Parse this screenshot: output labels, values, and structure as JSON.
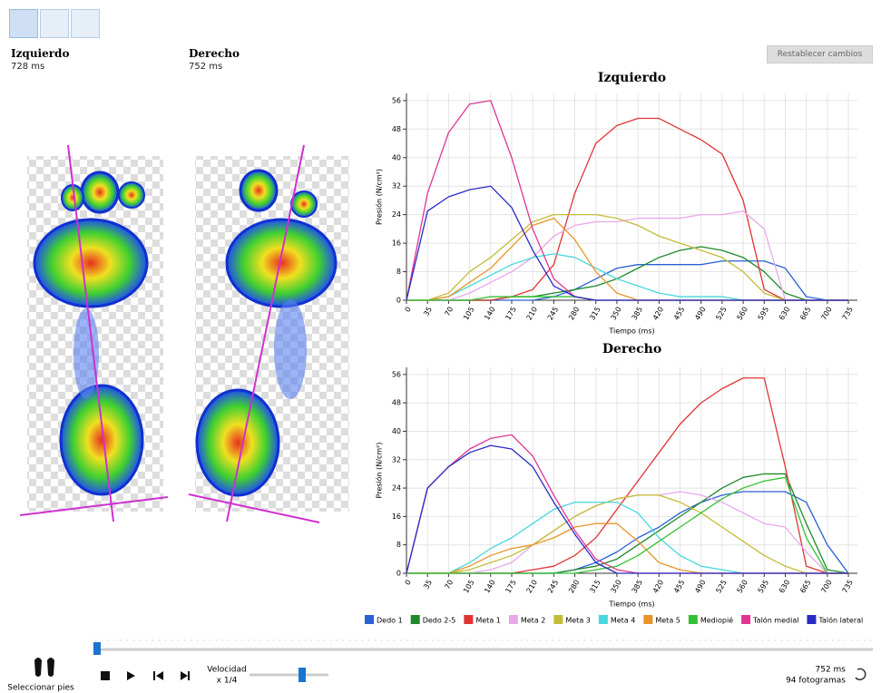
{
  "header": {
    "left_title": "Izquierdo",
    "left_time": "728 ms",
    "right_title": "Derecho",
    "right_time": "752 ms",
    "reset_button": "Restablecer cambios"
  },
  "controls": {
    "select_feet": "Seleccionar pies",
    "speed_label": "Velocidad",
    "speed_value": "x 1/4",
    "time": "752 ms",
    "frames": "94 fotogramas"
  },
  "chart_data": [
    {
      "type": "line",
      "title": "Izquierdo",
      "x_label": "Tiempo (ms)",
      "y_label": "Presión (N/cm²)",
      "grid": true,
      "x": [
        0,
        35,
        70,
        105,
        140,
        175,
        210,
        245,
        280,
        315,
        350,
        385,
        420,
        455,
        490,
        525,
        560,
        595,
        630,
        665,
        700,
        735
      ],
      "xlim": [
        0,
        750
      ],
      "xticks": [
        0,
        35,
        70,
        105,
        140,
        175,
        210,
        245,
        280,
        315,
        350,
        385,
        420,
        455,
        490,
        525,
        560,
        595,
        630,
        665,
        700,
        735
      ],
      "ylim": [
        0,
        58
      ],
      "yticks": [
        0,
        8,
        16,
        24,
        32,
        40,
        48,
        56
      ],
      "series": [
        {
          "name": "Dedo 1",
          "color": "#2a62d4",
          "values": [
            0,
            0,
            0,
            0,
            0,
            0,
            0,
            1,
            3,
            6,
            9,
            10,
            10,
            10,
            10,
            11,
            11,
            11,
            9,
            1,
            0,
            0
          ]
        },
        {
          "name": "Dedo 2-5",
          "color": "#1f8a2a",
          "values": [
            0,
            0,
            0,
            0,
            0,
            1,
            1,
            2,
            3,
            4,
            6,
            9,
            12,
            14,
            15,
            14,
            12,
            8,
            2,
            0,
            0,
            0
          ]
        },
        {
          "name": "Meta 1",
          "color": "#e03434",
          "values": [
            0,
            0,
            0,
            0,
            0,
            1,
            3,
            10,
            30,
            44,
            49,
            51,
            51,
            48,
            45,
            41,
            28,
            3,
            0,
            0,
            0,
            0
          ]
        },
        {
          "name": "Meta 2",
          "color": "#e8a8e8",
          "values": [
            0,
            0,
            0,
            2,
            5,
            8,
            12,
            18,
            21,
            22,
            22,
            23,
            23,
            23,
            24,
            24,
            25,
            20,
            0,
            0,
            0,
            0
          ]
        },
        {
          "name": "Meta 3",
          "color": "#c4bc38",
          "values": [
            0,
            0,
            2,
            8,
            12,
            17,
            22,
            24,
            24,
            24,
            23,
            21,
            18,
            16,
            14,
            12,
            8,
            2,
            0,
            0,
            0,
            0
          ]
        },
        {
          "name": "Meta 4",
          "color": "#46d8dc",
          "values": [
            0,
            0,
            1,
            4,
            7,
            10,
            12,
            13,
            12,
            9,
            6,
            4,
            2,
            1,
            1,
            1,
            0,
            0,
            0,
            0,
            0,
            0
          ]
        },
        {
          "name": "Meta 5",
          "color": "#ea9428",
          "values": [
            0,
            0,
            1,
            5,
            9,
            15,
            21,
            23,
            17,
            8,
            2,
            0,
            0,
            0,
            0,
            0,
            0,
            0,
            0,
            0,
            0,
            0
          ]
        },
        {
          "name": "Mediopié",
          "color": "#34c234",
          "values": [
            0,
            0,
            0,
            0,
            1,
            1,
            1,
            1,
            1,
            0,
            0,
            0,
            0,
            0,
            0,
            0,
            0,
            0,
            0,
            0,
            0,
            0
          ]
        },
        {
          "name": "Talón medial",
          "color": "#e03592",
          "values": [
            0,
            30,
            47,
            55,
            56,
            40,
            20,
            6,
            1,
            0,
            0,
            0,
            0,
            0,
            0,
            0,
            0,
            0,
            0,
            0,
            0,
            0
          ]
        },
        {
          "name": "Talón lateral",
          "color": "#2a2ac4",
          "values": [
            0,
            25,
            29,
            31,
            32,
            26,
            14,
            4,
            1,
            0,
            0,
            0,
            0,
            0,
            0,
            0,
            0,
            0,
            0,
            0,
            0,
            0
          ]
        }
      ]
    },
    {
      "type": "line",
      "title": "Derecho",
      "x_label": "Tiempo (ms)",
      "y_label": "Presión (N/cm²)",
      "grid": true,
      "x": [
        0,
        35,
        70,
        105,
        140,
        175,
        210,
        245,
        280,
        315,
        350,
        385,
        420,
        455,
        490,
        525,
        560,
        595,
        630,
        665,
        700,
        735
      ],
      "xlim": [
        0,
        750
      ],
      "xticks": [
        0,
        35,
        70,
        105,
        140,
        175,
        210,
        245,
        280,
        315,
        350,
        385,
        420,
        455,
        490,
        525,
        560,
        595,
        630,
        665,
        700,
        735
      ],
      "ylim": [
        0,
        58
      ],
      "yticks": [
        0,
        8,
        16,
        24,
        32,
        40,
        48,
        56
      ],
      "series": [
        {
          "color": "#2a62d4",
          "values": [
            0,
            0,
            0,
            0,
            0,
            0,
            0,
            0,
            1,
            3,
            6,
            10,
            13,
            17,
            20,
            22,
            23,
            23,
            23,
            20,
            8,
            0
          ]
        },
        {
          "color": "#1f8a2a",
          "values": [
            0,
            0,
            0,
            0,
            0,
            0,
            0,
            0,
            1,
            2,
            4,
            8,
            12,
            16,
            20,
            24,
            27,
            28,
            28,
            14,
            1,
            0
          ]
        },
        {
          "color": "#e03434",
          "values": [
            0,
            0,
            0,
            0,
            0,
            0,
            1,
            2,
            5,
            10,
            18,
            26,
            34,
            42,
            48,
            52,
            55,
            55,
            30,
            2,
            0,
            0
          ]
        },
        {
          "color": "#e8a8e8",
          "values": [
            0,
            0,
            0,
            0,
            1,
            3,
            8,
            12,
            16,
            19,
            21,
            22,
            22,
            23,
            22,
            20,
            17,
            14,
            13,
            6,
            0,
            0
          ]
        },
        {
          "color": "#c4bc38",
          "values": [
            0,
            0,
            0,
            1,
            3,
            5,
            8,
            12,
            16,
            19,
            21,
            22,
            22,
            20,
            17,
            13,
            9,
            5,
            2,
            0,
            0,
            0
          ]
        },
        {
          "color": "#46d8dc",
          "values": [
            0,
            0,
            0,
            3,
            7,
            10,
            14,
            18,
            20,
            20,
            20,
            17,
            10,
            5,
            2,
            1,
            0,
            0,
            0,
            0,
            0,
            0
          ]
        },
        {
          "color": "#ea9428",
          "values": [
            0,
            0,
            0,
            2,
            5,
            7,
            8,
            10,
            13,
            14,
            14,
            9,
            3,
            1,
            0,
            0,
            0,
            0,
            0,
            0,
            0,
            0
          ]
        },
        {
          "color": "#34c234",
          "values": [
            0,
            0,
            0,
            0,
            0,
            0,
            0,
            0,
            0,
            1,
            2,
            5,
            9,
            13,
            17,
            21,
            24,
            26,
            27,
            10,
            0,
            0
          ]
        },
        {
          "color": "#e03592",
          "values": [
            0,
            24,
            30,
            35,
            38,
            39,
            33,
            22,
            12,
            4,
            1,
            0,
            0,
            0,
            0,
            0,
            0,
            0,
            0,
            0,
            0,
            0
          ]
        },
        {
          "color": "#2a2ac4",
          "values": [
            0,
            24,
            30,
            34,
            36,
            35,
            30,
            20,
            11,
            3,
            0,
            0,
            0,
            0,
            0,
            0,
            0,
            0,
            0,
            0,
            0,
            0
          ]
        }
      ]
    }
  ]
}
